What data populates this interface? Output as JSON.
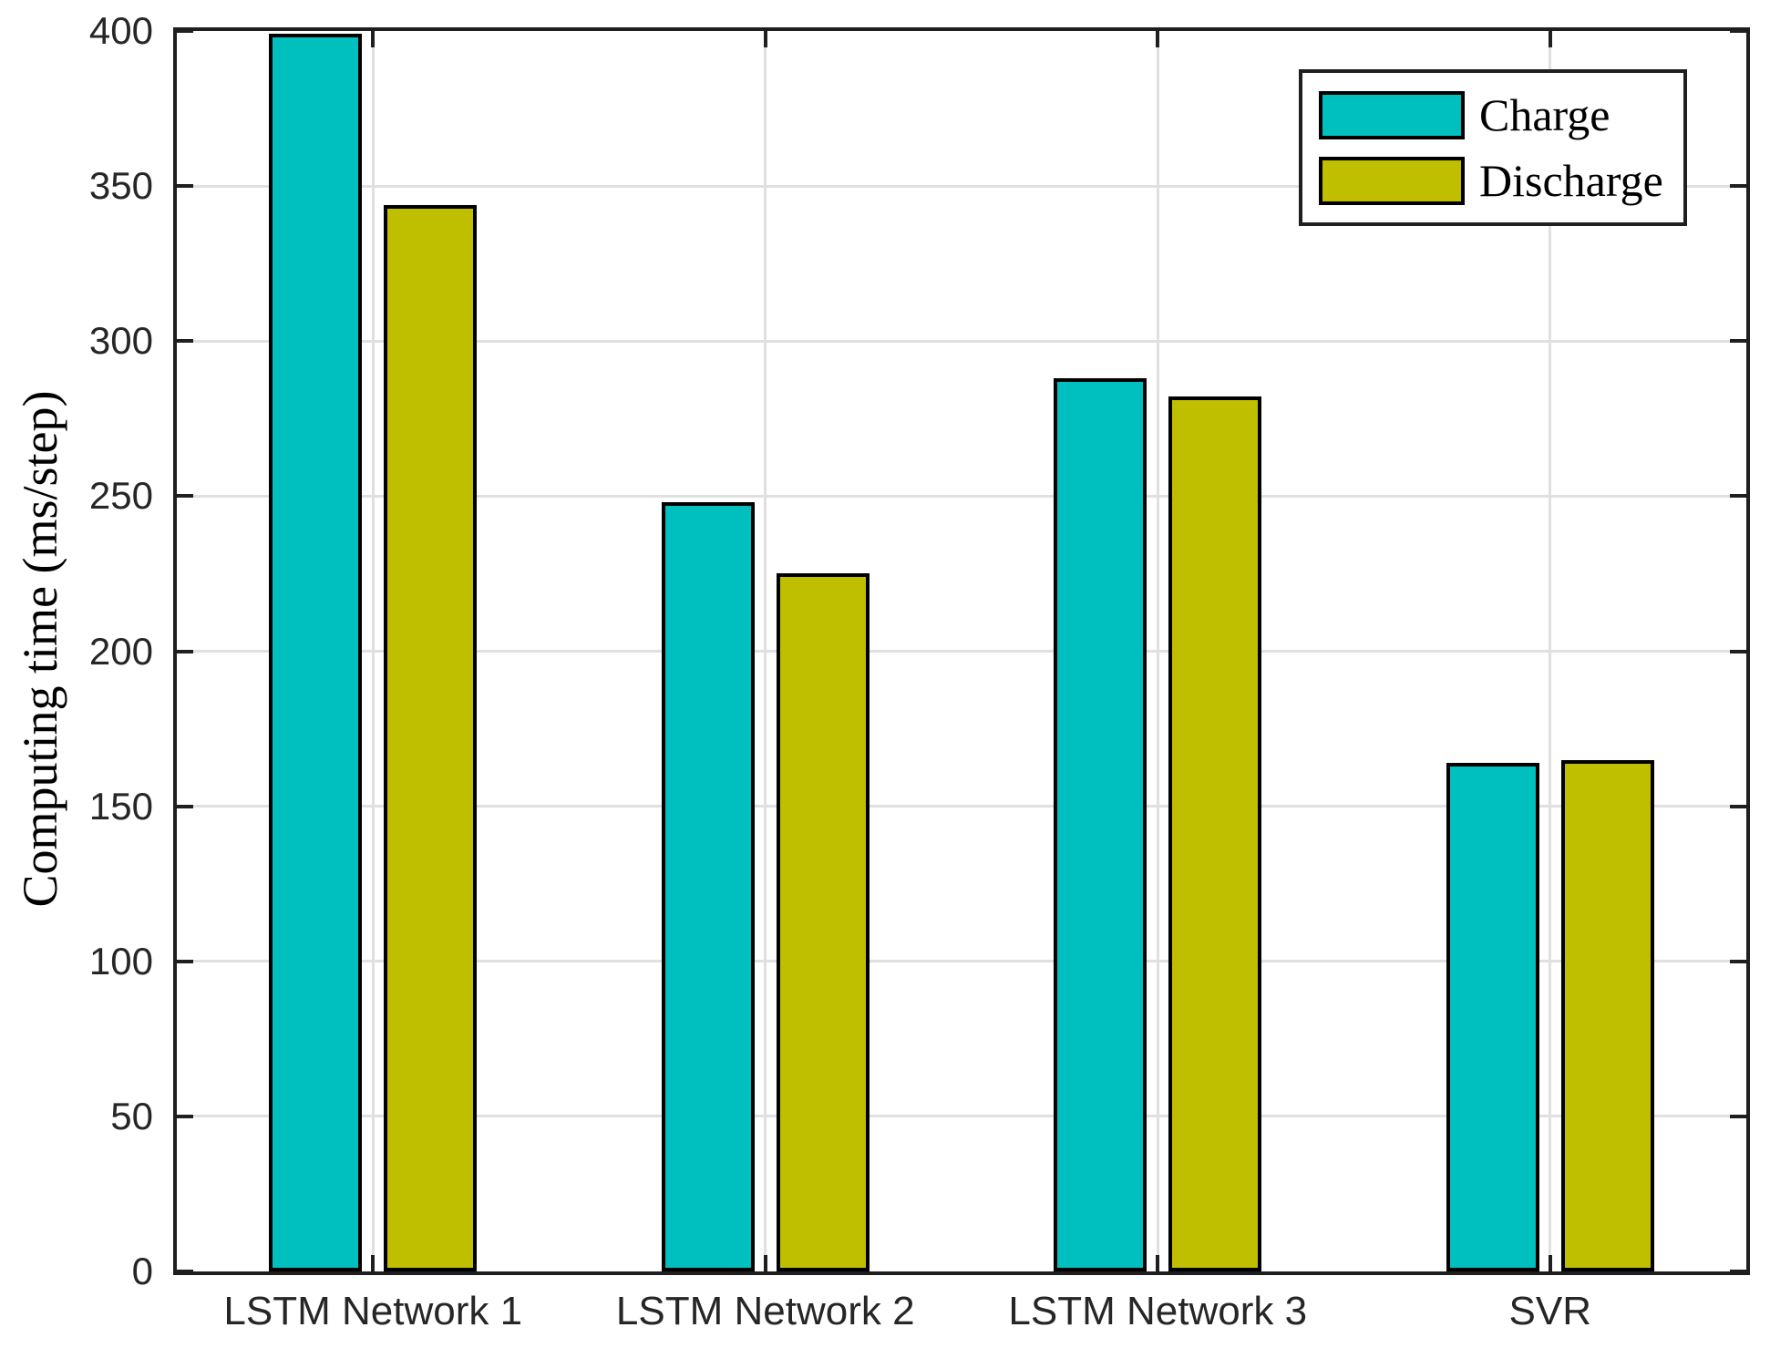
{
  "figure": {
    "background": "#ffffff",
    "axis_color": "#1f1f1f",
    "grid_color": "#e0e0e0",
    "tick_label_color": "#262626"
  },
  "chart_data": {
    "type": "bar",
    "title": "",
    "xlabel": "",
    "ylabel": "Computing time (ms/step)",
    "categories": [
      "LSTM Network 1",
      "LSTM Network 2",
      "LSTM Network 3",
      "SVR"
    ],
    "series": [
      {
        "name": "Charge",
        "color": "#00BFBF",
        "values": [
          399,
          248,
          288,
          164
        ]
      },
      {
        "name": "Discharge",
        "color": "#BFBF00",
        "values": [
          344,
          225,
          282,
          165
        ]
      }
    ],
    "ylim": [
      0,
      400
    ],
    "yticks": [
      0,
      50,
      100,
      150,
      200,
      250,
      300,
      350,
      400
    ],
    "grid": true,
    "bar_edge_color": "#000000",
    "legend_position": "top-right"
  },
  "legend": {
    "items": [
      {
        "label": "Charge",
        "color": "#00BFBF"
      },
      {
        "label": "Discharge",
        "color": "#BFBF00"
      }
    ]
  }
}
